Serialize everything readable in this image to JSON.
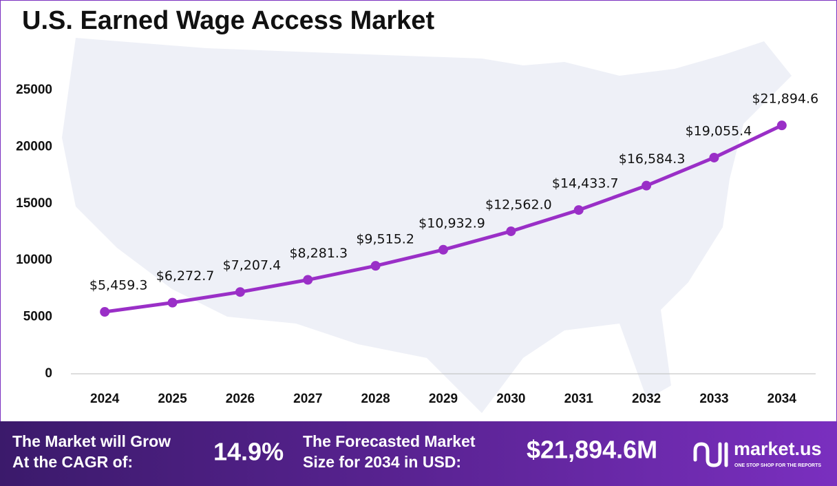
{
  "chart_data": {
    "type": "line",
    "title": "U.S. Earned Wage Access Market",
    "categories": [
      "2024",
      "2025",
      "2026",
      "2027",
      "2028",
      "2029",
      "2030",
      "2031",
      "2032",
      "2033",
      "2034"
    ],
    "values": [
      5459.3,
      6272.7,
      7207.4,
      8281.3,
      9515.2,
      10932.9,
      12562.0,
      14433.7,
      16584.3,
      19055.4,
      21894.6
    ],
    "value_labels": [
      "$5,459.3",
      "$6,272.7",
      "$7,207.4",
      "$8,281.3",
      "$9,515.2",
      "$10,932.9",
      "$12,562.0",
      "$14,433.7",
      "$16,584.3",
      "$19,055.4",
      "$21,894.6"
    ],
    "color": "#9a2fc7",
    "ylim": [
      0,
      27000
    ],
    "yticks": [
      0,
      5000,
      10000,
      15000,
      20000,
      25000
    ]
  },
  "footer": {
    "cagr_text": [
      "The Market will Grow",
      "At the CAGR of:"
    ],
    "cagr": "14.9%",
    "forecast_text": [
      "The Forecasted Market",
      "Size for 2034 in USD:"
    ],
    "forecast": "$21,894.6M",
    "brand": "market.us",
    "tagline": "ONE STOP SHOP FOR THE REPORTS"
  }
}
